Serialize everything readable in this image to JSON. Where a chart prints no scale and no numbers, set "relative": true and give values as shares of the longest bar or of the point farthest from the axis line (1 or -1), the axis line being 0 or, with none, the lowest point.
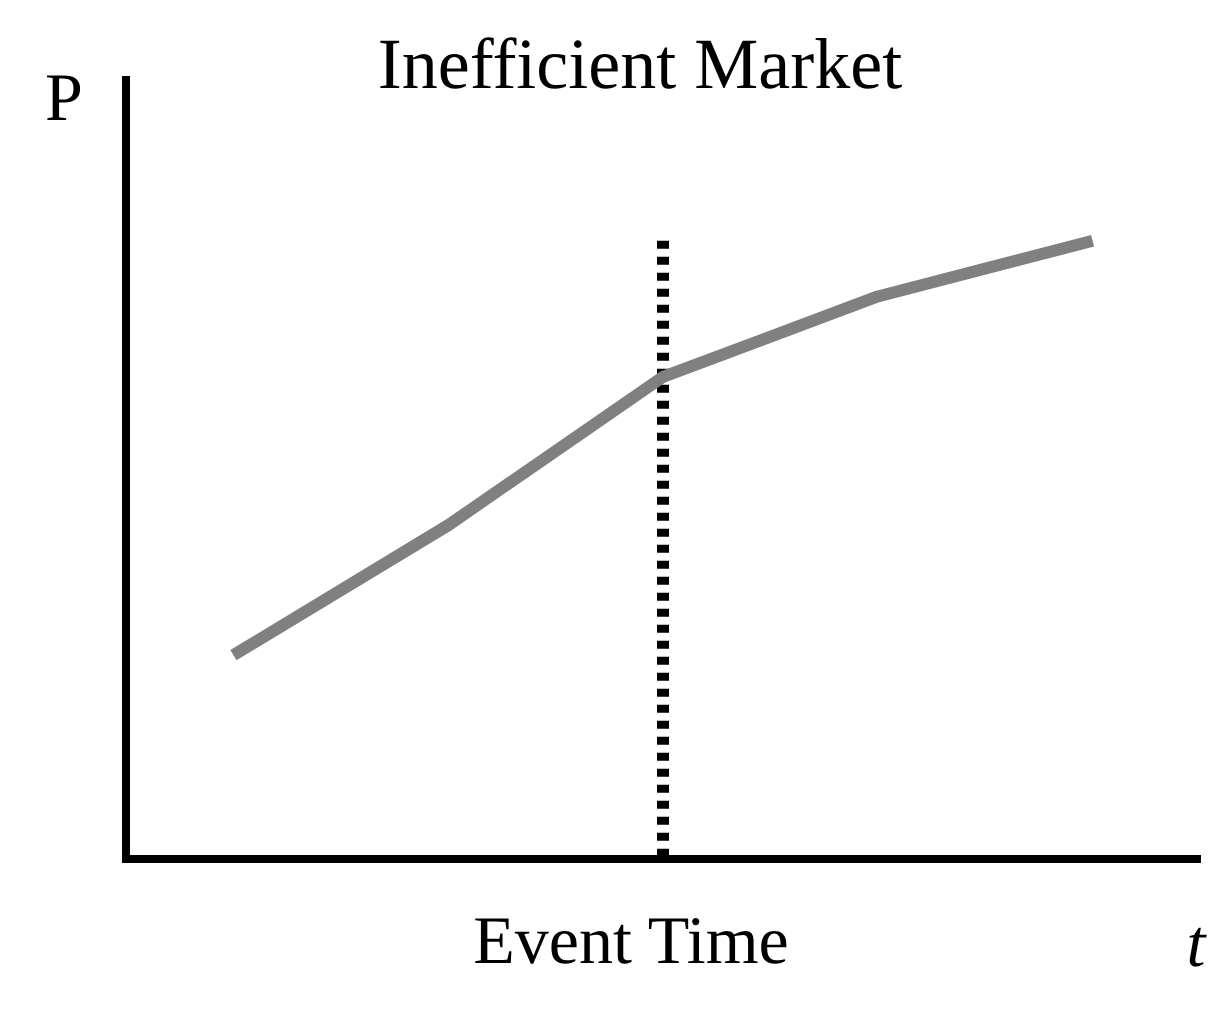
{
  "chart_data": {
    "type": "line",
    "title": "Inefficient Market",
    "xlabel": "t",
    "ylabel": "P",
    "relative": true,
    "grid": false,
    "legend": false,
    "marker": "none",
    "line_style": "solid",
    "categories": [
      null,
      null,
      null,
      null,
      null
    ],
    "series": [
      {
        "color": "#808080",
        "values": [
          0.33,
          0.54,
          0.78,
          0.91,
          1
        ]
      }
    ],
    "ref_lines": [
      {
        "axis": "x",
        "label": "Event Time",
        "color": "#000000",
        "line_style": "dotted"
      }
    ]
  }
}
